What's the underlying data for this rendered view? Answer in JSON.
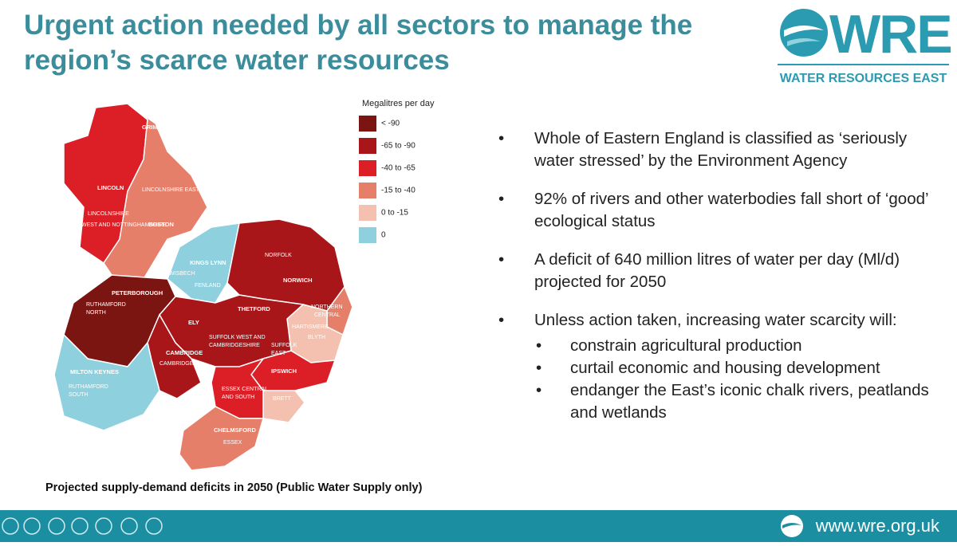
{
  "header": {
    "title": "Urgent action needed by all sectors to manage the region’s scarce water resources",
    "logo_text": "WRE",
    "logo_subtitle": "WATER RESOURCES EAST"
  },
  "map": {
    "legend_title": "Megalitres per day",
    "legend": [
      {
        "label": "< -90",
        "color": "#7a1512"
      },
      {
        "label": "-65 to -90",
        "color": "#a8161a"
      },
      {
        "label": "-40 to -65",
        "color": "#dc1f26"
      },
      {
        "label": "-15 to -40",
        "color": "#e57f6a"
      },
      {
        "label": "0 to -15",
        "color": "#f4c0b0"
      },
      {
        "label": "0",
        "color": "#8fd0de"
      }
    ],
    "labels": [
      "GRIMSBY",
      "LINCOLN",
      "LINCOLNSHIRE EAST",
      "LINCOLNSHIRE",
      "WEST AND NOTTINGHAMSHIRE",
      "BOSTON",
      "KINGS LYNN",
      "WISBECH",
      "FENLAND",
      "NORFOLK",
      "NORWICH",
      "PETERBOROUGH",
      "THETFORD",
      "NORTHERN",
      "CENTRAL",
      "RUTHAMFORD",
      "NORTH",
      "ELY",
      "HARTISMERE",
      "SUFFOLK WEST AND",
      "CAMBRIDGESHIRE",
      "BLYTH",
      "CAMBRIDGE",
      "SUFFOLK",
      "EAST",
      "CAMBRIDGE",
      "IPSWICH",
      "MILTON KEYNES",
      "RUTHAMFORD",
      "SOUTH",
      "ESSEX CENTRAL",
      "AND SOUTH",
      "BRETT",
      "CHELMSFORD",
      "ESSEX"
    ],
    "caption": "Projected supply-demand deficits in 2050 (Public Water Supply only)"
  },
  "bullets": [
    "Whole of Eastern England is classified as ‘seriously water stressed’ by the Environment Agency",
    "92% of rivers and other waterbodies fall short of ‘good’ ecological status",
    "A deficit of 640 million litres of water per day (Ml/d) projected for 2050",
    "Unless action taken, increasing water scarcity will:"
  ],
  "sub_bullets": [
    "constrain agricultural production",
    "curtail economic and housing development",
    "endanger the East’s iconic chalk rivers, peatlands and wetlands"
  ],
  "footer": {
    "url": "www.wre.org.uk"
  }
}
